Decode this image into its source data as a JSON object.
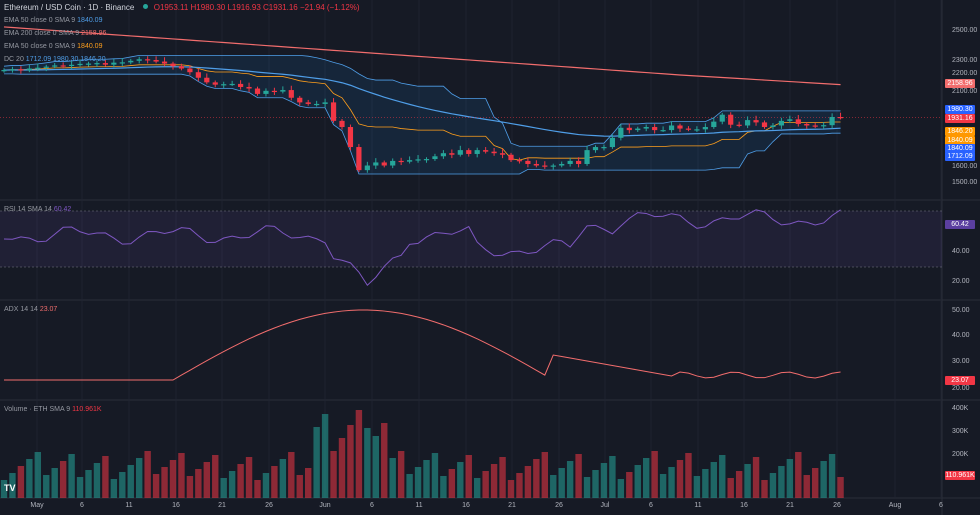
{
  "header": {
    "symbol": "Ethereum / USD Coin · 1D · Binance",
    "ohlc": "O1953.11 H1980.30 L1916.93 C1931.16 −21.94 (−1.12%)"
  },
  "indicators": [
    {
      "name": "EMA 50 close 0 SMA 9",
      "value": "1840.09",
      "color": "#4f9ee8"
    },
    {
      "name": "EMA 200 close 0 SMA 9",
      "value": "2158.96",
      "color": "#f26d6d"
    },
    {
      "name": "EMA 50 close 0 SMA 9",
      "value": "1840.09",
      "color": "#ff9f1c"
    },
    {
      "name": "DC 20",
      "value": "1712.09 1980.30 1846.20",
      "color": "#4f9ee8"
    }
  ],
  "rsi": {
    "label": "RSI 14 SMA 14",
    "value": "60.42"
  },
  "adx": {
    "label": "ADX 14 14",
    "value": "23.07"
  },
  "volume": {
    "label": "Volume · ETH SMA 9",
    "value": "110.961K"
  },
  "price_axis": [
    "2500.00",
    "2300.00",
    "2200.00",
    "2100.00",
    "1600.00",
    "1500.00"
  ],
  "price_tags": [
    {
      "text": "2158.96",
      "bg": "#f26d6d",
      "y": 83
    },
    {
      "text": "1980.30",
      "bg": "#2962ff",
      "y": 109
    },
    {
      "text": "1931.16",
      "bg": "#f23645",
      "y": 118
    },
    {
      "text": "1846.20",
      "bg": "#ff9800",
      "y": 131
    },
    {
      "text": "1840.09",
      "bg": "#ff9800",
      "y": 140
    },
    {
      "text": "1840.09",
      "bg": "#2962ff",
      "y": 148
    },
    {
      "text": "1712.09",
      "bg": "#2962ff",
      "y": 156
    }
  ],
  "rsi_axis": [
    "40.00",
    "20.00"
  ],
  "rsi_tag": "60.42",
  "adx_axis": [
    "50.00",
    "40.00",
    "30.00",
    "20.00"
  ],
  "adx_tag": "23.07",
  "vol_axis": [
    "400K",
    "300K",
    "200K"
  ],
  "vol_tag": "110.961K",
  "x_axis": [
    "May",
    "6",
    "11",
    "16",
    "21",
    "26",
    "Jun",
    "6",
    "11",
    "16",
    "21",
    "26",
    "Jul",
    "6",
    "11",
    "16",
    "21",
    "26",
    "Aug",
    "6"
  ],
  "chart_data": {
    "type": "candlestick",
    "dates_start": "May 1",
    "close": [
      2240,
      2245,
      2238,
      2250,
      2255,
      2262,
      2270,
      2268,
      2274,
      2280,
      2282,
      2285,
      2275,
      2288,
      2290,
      2300,
      2310,
      2305,
      2295,
      2282,
      2265,
      2250,
      2226,
      2190,
      2160,
      2145,
      2148,
      2150,
      2130,
      2120,
      2085,
      2105,
      2100,
      2110,
      2060,
      2030,
      2020,
      2020,
      2030,
      1910,
      1870,
      1740,
      1590,
      1620,
      1640,
      1620,
      1650,
      1645,
      1655,
      1660,
      1662,
      1680,
      1700,
      1690,
      1720,
      1695,
      1720,
      1710,
      1700,
      1690,
      1655,
      1650,
      1630,
      1620,
      1615,
      1620,
      1630,
      1650,
      1630,
      1720,
      1740,
      1740,
      1800,
      1865,
      1850,
      1860,
      1870,
      1850,
      1850,
      1880,
      1860,
      1855,
      1855,
      1870,
      1905,
      1950,
      1885,
      1880,
      1915,
      1900,
      1870,
      1880,
      1910,
      1920,
      1890,
      1880,
      1875,
      1882,
      1935,
      1931
    ],
    "ema200": [
      2520,
      2300,
      2158.96
    ],
    "donchian_upper": 1980.3,
    "donchian_lower": 1712.09,
    "donchian_mid": 1846.2
  }
}
